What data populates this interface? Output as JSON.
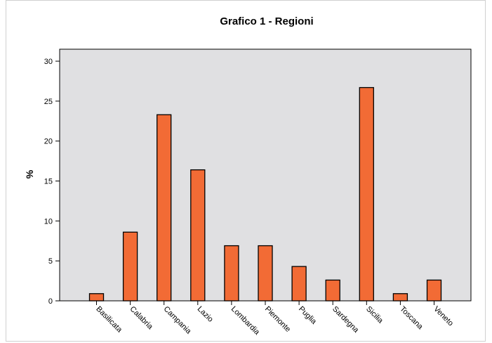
{
  "chart_data": {
    "type": "bar",
    "title": "Grafico 1 - Regioni",
    "ylabel": "%",
    "xlabel": "",
    "categories": [
      "Basilicata",
      "Calabria",
      "Campania",
      "Lazio",
      "Lombardia",
      "Piemonte",
      "Puglia",
      "Sardegna",
      "Sicilia",
      "Toscana",
      "Veneto"
    ],
    "values": [
      0.9,
      8.6,
      23.3,
      16.4,
      6.9,
      6.9,
      4.3,
      2.6,
      26.7,
      0.9,
      2.6
    ],
    "ylim": [
      0,
      31.5
    ],
    "yticks": [
      "0",
      "5",
      "10",
      "15",
      "20",
      "25",
      "30"
    ],
    "grid": false,
    "colors": {
      "bar_fill": "#f26b35",
      "bar_stroke": "#000000",
      "plot_background": "#e0e0e2",
      "axis": "#000000"
    }
  }
}
